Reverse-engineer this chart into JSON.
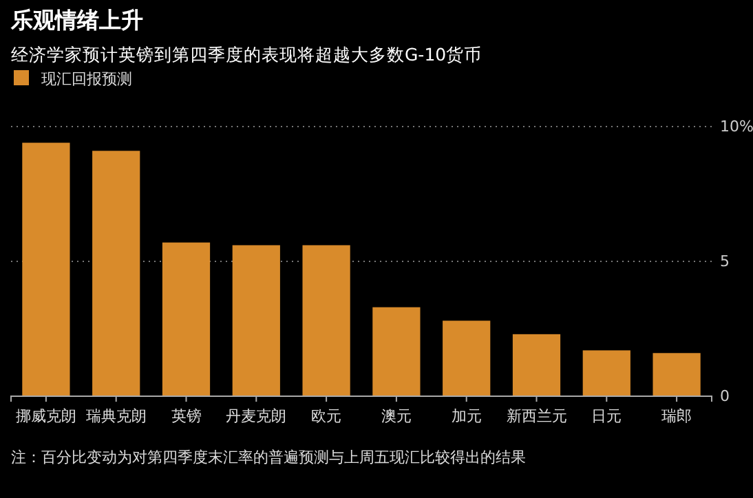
{
  "chart_data": {
    "type": "bar",
    "title": "乐观情绪上升",
    "subtitle": "经济学家预计英镑到第四季度的表现将超越大多数G-10货币",
    "categories": [
      "挪威克朗",
      "瑞典克朗",
      "英镑",
      "丹麦克朗",
      "欧元",
      "澳元",
      "加元",
      "新西兰元",
      "日元",
      "瑞郎"
    ],
    "series": [
      {
        "name": "现汇回报预测",
        "color": "#d98b2b",
        "values": [
          9.4,
          9.1,
          5.7,
          5.6,
          5.6,
          3.3,
          2.8,
          2.3,
          1.7,
          1.6
        ]
      }
    ],
    "ylim": [
      0,
      10
    ],
    "yticks": [
      0,
      5,
      {
        "value": 10,
        "label": "10%"
      }
    ],
    "grid": "y",
    "legend": "top left",
    "annotations": [
      "注：百分比变动为对第四季度末汇率的普遍预测与上周五现汇比较得出的结果"
    ]
  }
}
